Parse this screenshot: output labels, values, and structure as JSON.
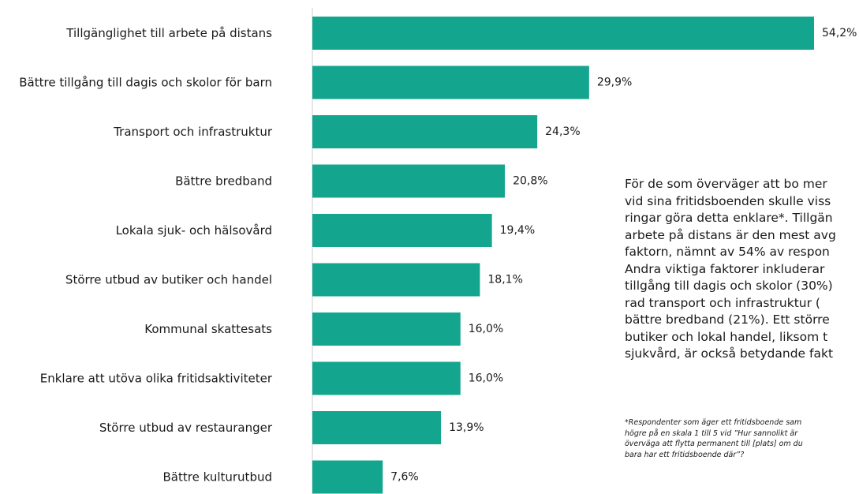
{
  "chart_data": {
    "type": "bar",
    "orientation": "horizontal",
    "categories": [
      "Tillgänglighet till arbete på distans",
      "Bättre tillgång till dagis och skolor för barn",
      "Transport och infrastruktur",
      "Bättre bredband",
      "Lokala sjuk- och hälsovård",
      "Större utbud av butiker och handel",
      "Kommunal skattesats",
      "Enklare att utöva olika fritidsaktiviteter",
      "Större utbud av restauranger",
      "Bättre kulturutbud"
    ],
    "values": [
      54.2,
      29.9,
      24.3,
      20.8,
      19.4,
      18.1,
      16.0,
      16.0,
      13.9,
      7.6
    ],
    "data_labels": [
      "54,2%",
      "29,9%",
      "24,3%",
      "20,8%",
      "19,4%",
      "18,1%",
      "16,0%",
      "16,0%",
      "13,9%",
      "7,6%"
    ],
    "bar_color": "#14a58f",
    "axis_color": "#cfcfcf",
    "xlim": [
      0,
      54.2
    ],
    "grid": false,
    "legend": "none"
  },
  "description": "För de som överväger att bo mer\nvid sina fritidsboenden skulle viss\nringar göra detta enklare*. Tillgän\narbete på distans är den mest avg\nfaktorn, nämnt av 54% av respon\nAndra viktiga faktorer inkluderar\ntillgång till dagis och skolor (30%)\nrad transport och infrastruktur (\nbättre bredband (21%). Ett större\nbutiker och lokal handel, liksom t\nsjukvård, är också betydande fakt",
  "footnote": "*Respondenter som äger ett fritidsboende sam\nhögre på en skala 1 till 5 vid ”Hur sannolikt är\növerväga att flytta permanent till [plats] om du\nbara har ett fritidsboende där”?"
}
